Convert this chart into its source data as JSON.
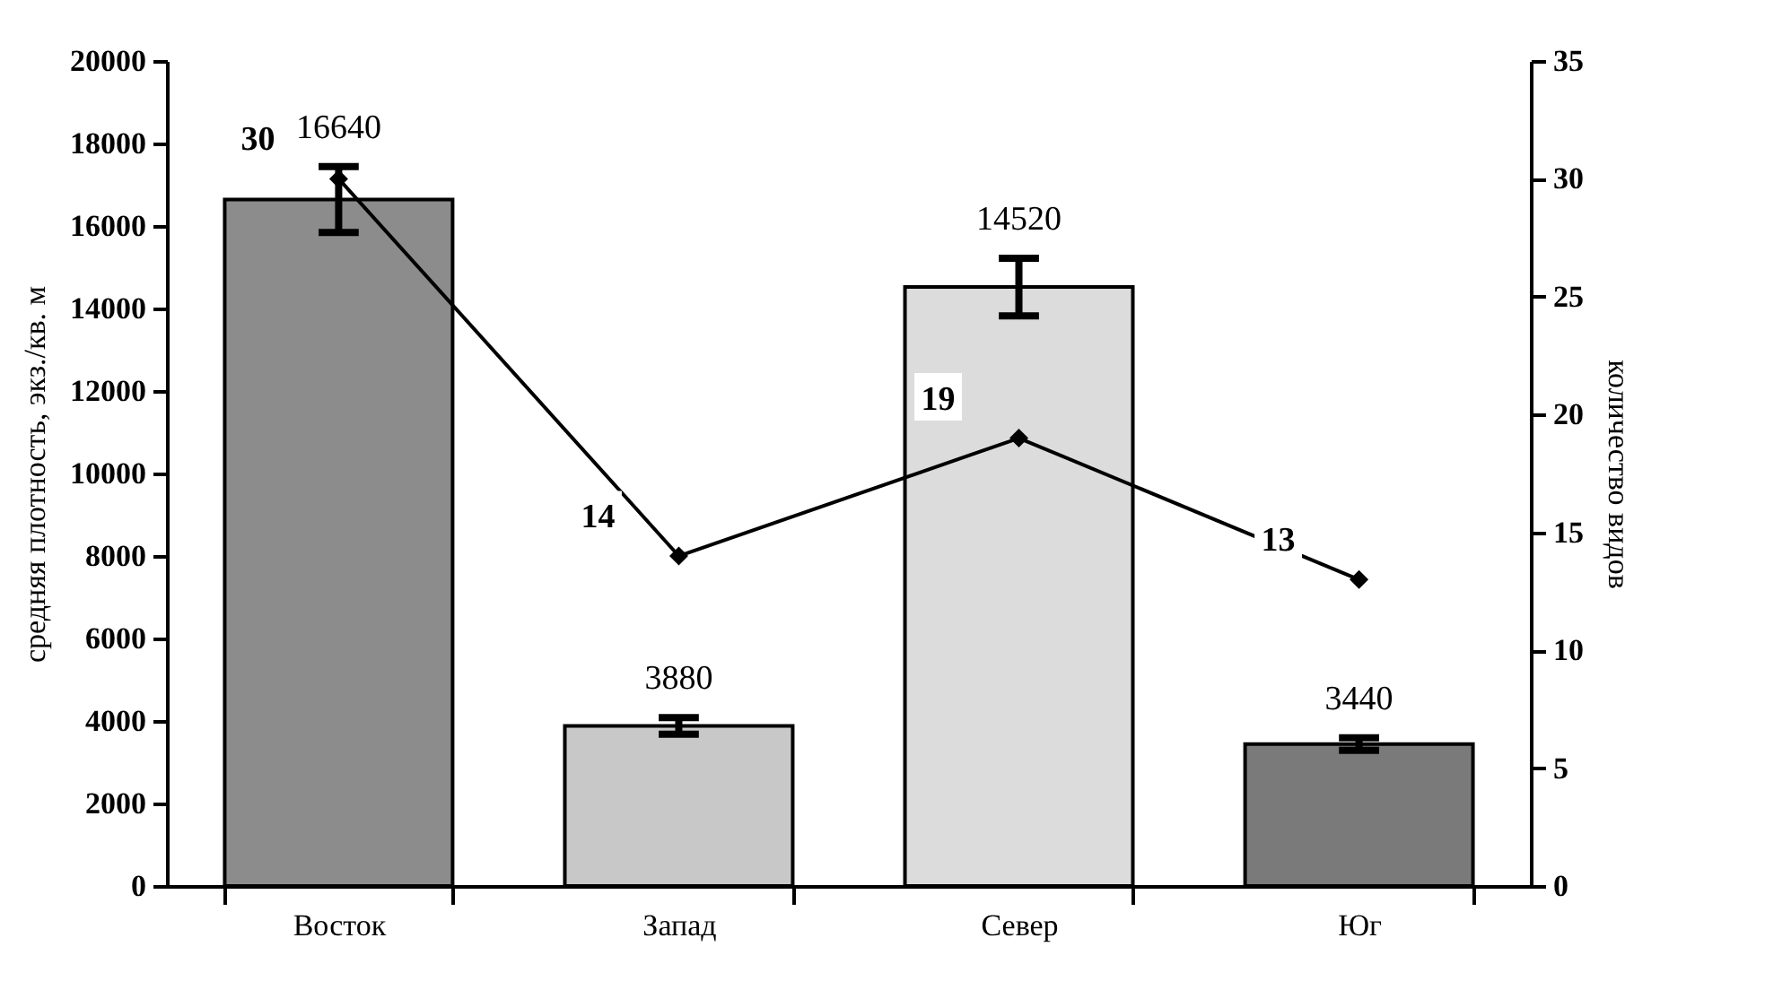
{
  "chart_data": {
    "type": "bar",
    "categories": [
      "Восток",
      "Запад",
      "Север",
      "Юг"
    ],
    "ylabel": "средняя плотность, экз./кв. м",
    "y2label": "количество видов",
    "ylim": [
      0,
      20000
    ],
    "yticks": [
      0,
      2000,
      4000,
      6000,
      8000,
      10000,
      12000,
      14000,
      16000,
      18000,
      20000
    ],
    "y2lim": [
      0,
      35
    ],
    "y2ticks": [
      0,
      5,
      10,
      15,
      20,
      25,
      30,
      35
    ],
    "data_labels": true,
    "grid": false,
    "series": [
      {
        "colors": [
          "#8c8c8c",
          "#c8c8c8",
          "#dcdcdc",
          "#7a7a7a"
        ],
        "values": [
          16640,
          3880,
          14520,
          3440
        ],
        "errors": [
          800,
          200,
          700,
          150
        ]
      },
      {
        "type": "line",
        "axis": "y2",
        "color": "#000000",
        "marker": "diamond",
        "line_style": "solid",
        "values": [
          30,
          14,
          19,
          13
        ]
      }
    ]
  }
}
